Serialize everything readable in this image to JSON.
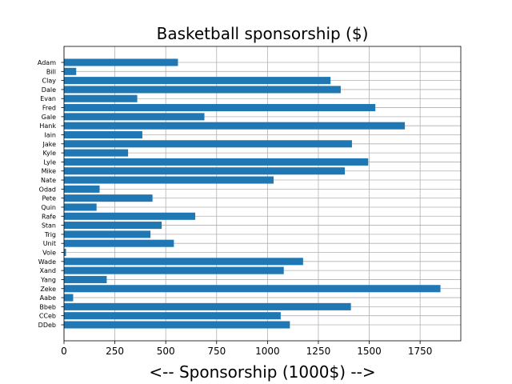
{
  "chart_data": {
    "type": "bar",
    "orientation": "horizontal",
    "title": "Basketball sponsorship ($)",
    "xlabel": "<-- Sponsorship (1000$) -->",
    "ylabel": "",
    "xlim": [
      0,
      1950
    ],
    "xticks": [
      0,
      250,
      500,
      750,
      1000,
      1250,
      1500,
      1750
    ],
    "grid": true,
    "bar_color": "#1f77b4",
    "categories": [
      "Adam",
      "Bill",
      "Clay",
      "Dale",
      "Evan",
      "Fred",
      "Gale",
      "Hank",
      "Iain",
      "Jake",
      "Kyle",
      "Lyle",
      "Mike",
      "Nate",
      "Odad",
      "Pete",
      "Quin",
      "Rafe",
      "Stan",
      "Trig",
      "Unit",
      "Vole",
      "Wade",
      "Xand",
      "Yang",
      "Zeke",
      "Aabe",
      "Bbeb",
      "CCeb",
      "DDeb"
    ],
    "values": [
      560,
      60,
      1310,
      1360,
      360,
      1530,
      690,
      1675,
      385,
      1415,
      315,
      1495,
      1380,
      1030,
      175,
      435,
      160,
      645,
      480,
      425,
      540,
      10,
      1175,
      1080,
      210,
      1850,
      45,
      1410,
      1065,
      1110
    ]
  }
}
